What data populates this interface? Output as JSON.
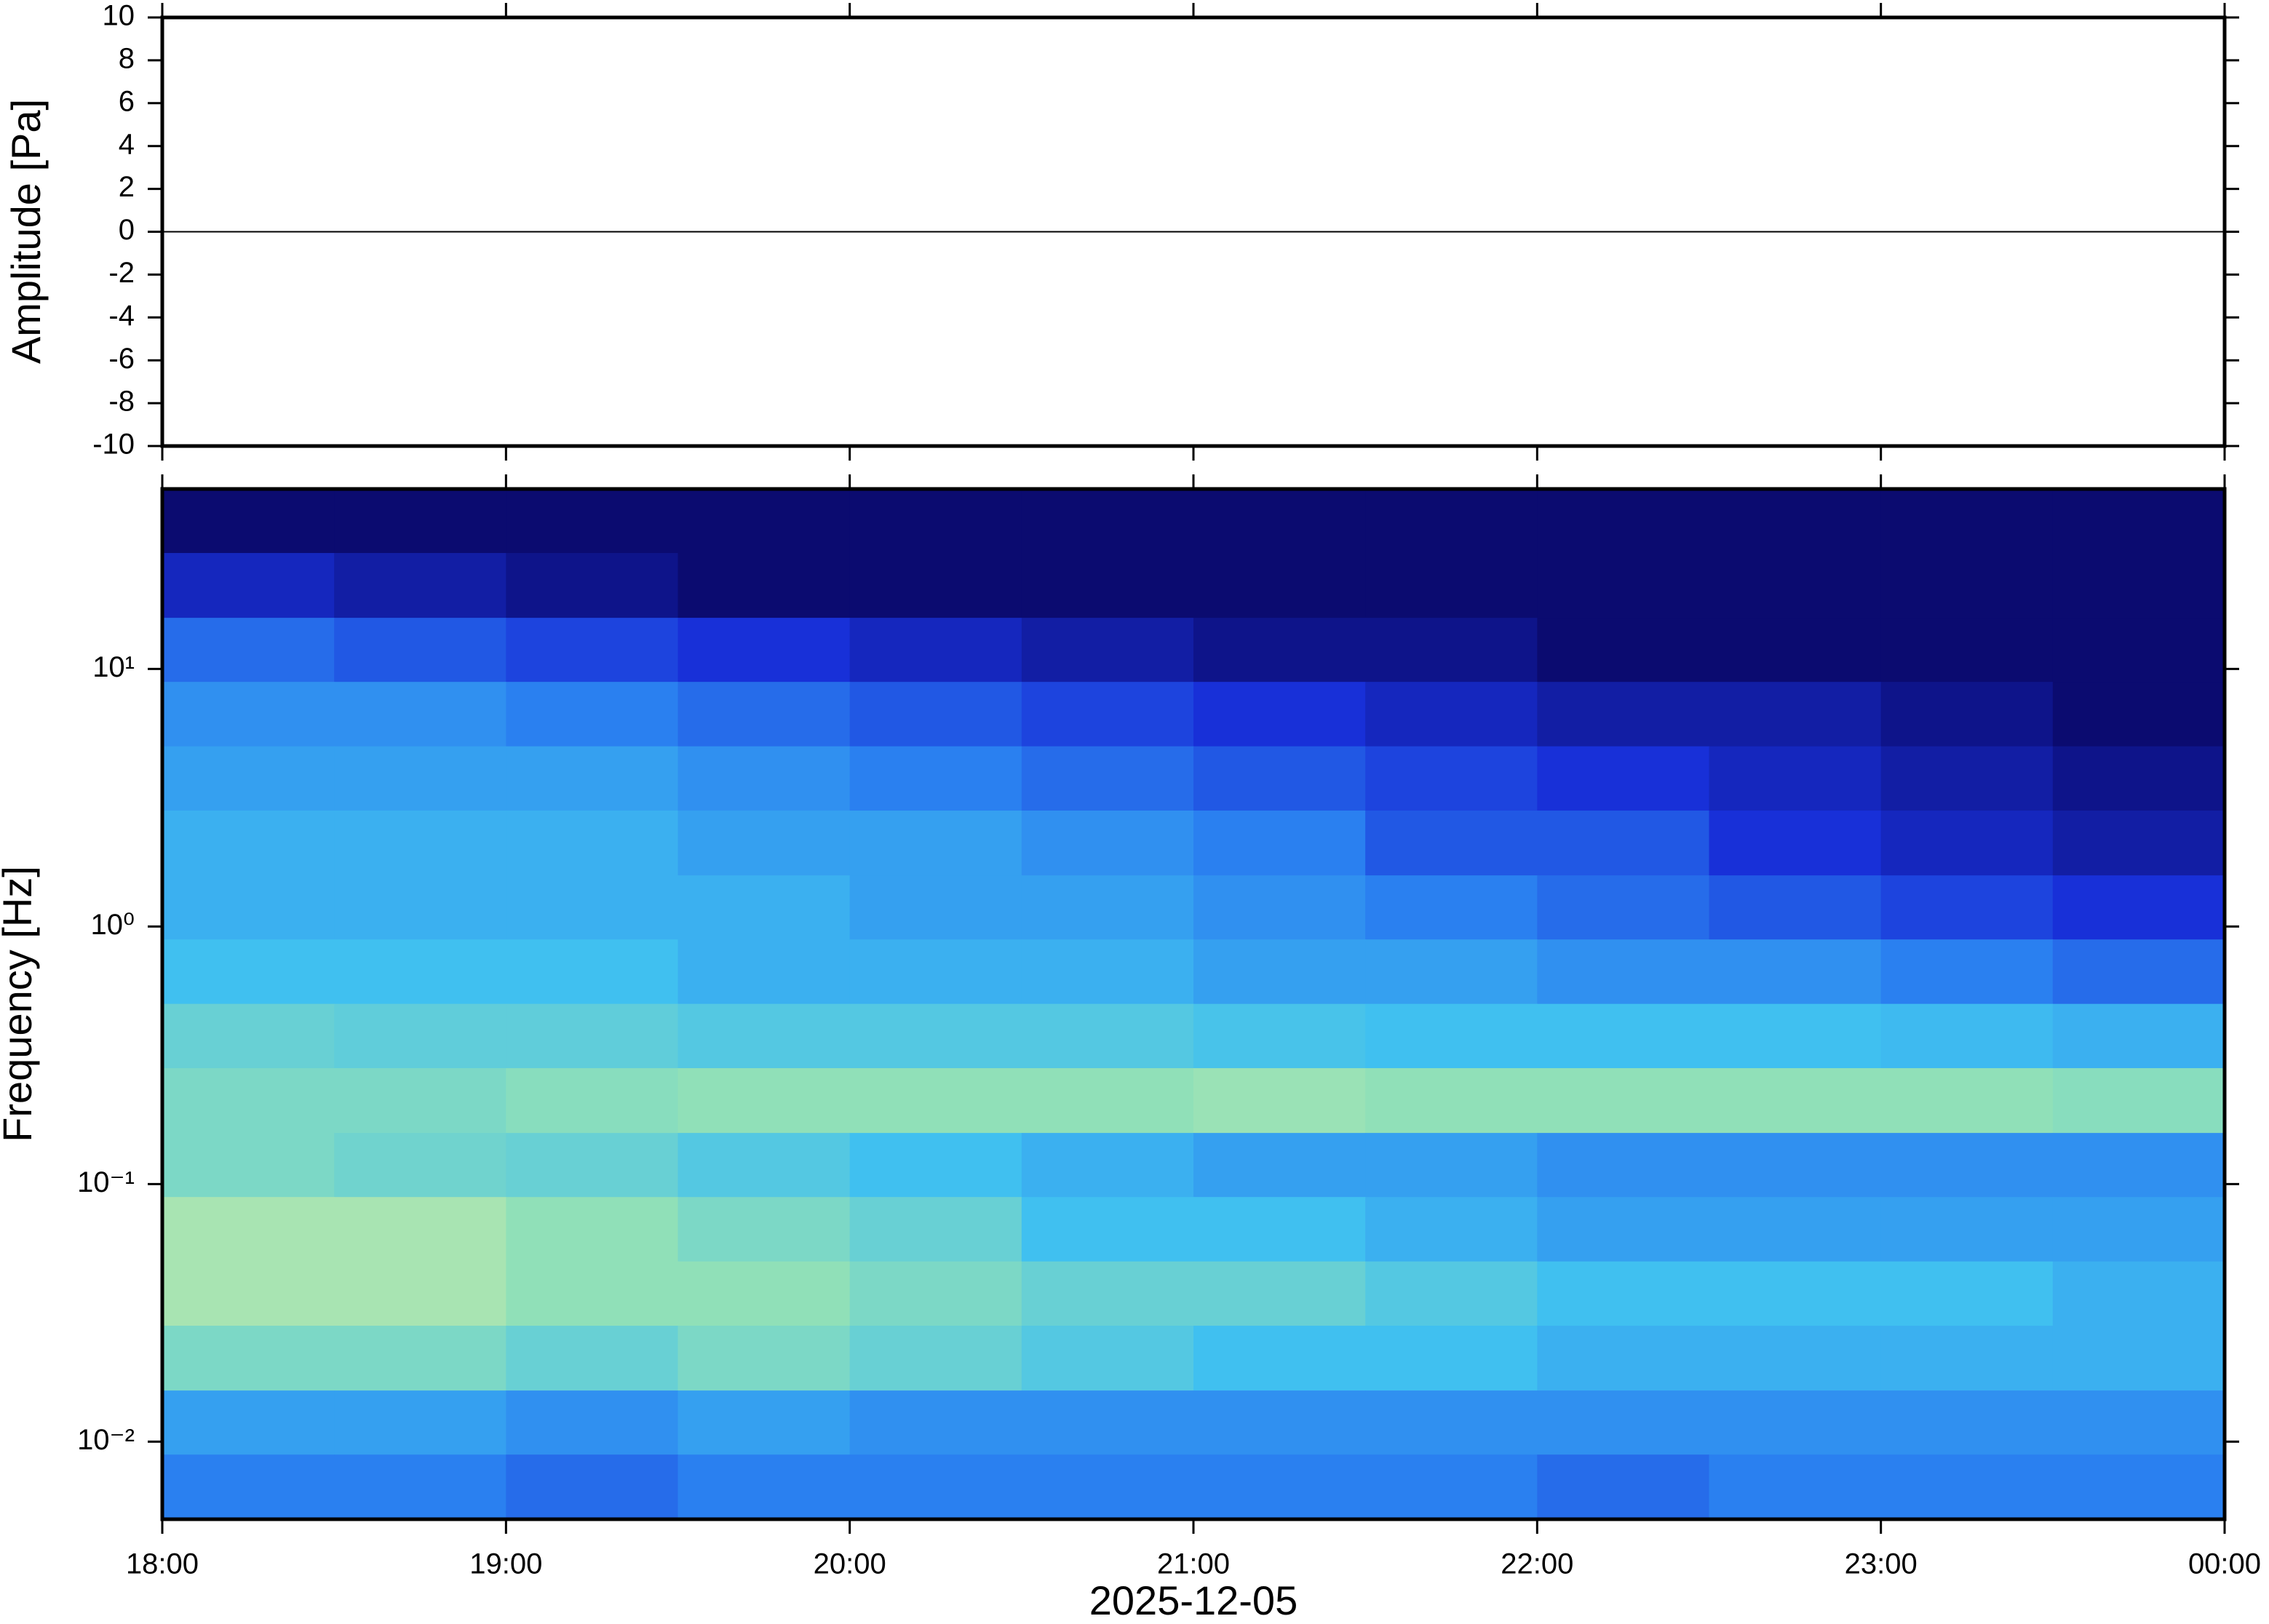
{
  "chart_data": [
    {
      "type": "line",
      "ylabel": "Amplitude [Pa]",
      "xlim": [
        18,
        24
      ],
      "ylim": [
        -10,
        10
      ],
      "yticks": [
        -10,
        -8,
        -6,
        -4,
        -2,
        0,
        2,
        4,
        6,
        8,
        10
      ],
      "series": [
        {
          "name": "Amplitude",
          "color": "#000000",
          "x": [
            18,
            18.5,
            19,
            19.5,
            20,
            20.5,
            21,
            21.5,
            22,
            22.5,
            23,
            23.5,
            24
          ],
          "values": [
            0,
            0,
            0,
            0,
            0,
            0,
            0,
            0,
            0,
            0,
            0,
            0,
            0
          ]
        }
      ]
    },
    {
      "type": "heatmap",
      "ylabel": "Frequency [Hz]",
      "xlabel": "2025-12-05",
      "xlim": [
        18,
        24
      ],
      "xticks": [
        {
          "value": 18,
          "label": "18:00"
        },
        {
          "value": 19,
          "label": "19:00"
        },
        {
          "value": 20,
          "label": "20:00"
        },
        {
          "value": 21,
          "label": "21:00"
        },
        {
          "value": 22,
          "label": "22:00"
        },
        {
          "value": 23,
          "label": "23:00"
        },
        {
          "value": 24,
          "label": "00:00"
        }
      ],
      "ylim": [
        0.005,
        50
      ],
      "ylog": true,
      "yticks": [
        {
          "value": 10,
          "label": "10¹"
        },
        {
          "value": 1,
          "label": "10⁰"
        },
        {
          "value": 0.1,
          "label": "10⁻¹"
        },
        {
          "value": 0.01,
          "label": "10⁻²"
        }
      ],
      "x_edges": [
        18,
        18.5,
        19,
        19.5,
        20,
        20.5,
        21,
        21.5,
        22,
        22.5,
        23,
        23.5,
        24
      ],
      "y_edges": [
        50,
        28.2,
        15.8,
        8.91,
        5.01,
        2.82,
        1.58,
        0.891,
        0.501,
        0.282,
        0.158,
        0.0891,
        0.0501,
        0.0282,
        0.0158,
        0.00891,
        0.005
      ],
      "colormap": [
        "#0b0b70",
        "#1830d8",
        "#2a80f0",
        "#40c0f0",
        "#90e0b8",
        "#f0f0a0"
      ],
      "z": [
        [
          0,
          0,
          0,
          0,
          0,
          0,
          0,
          0,
          0,
          0,
          0,
          0
        ],
        [
          0.15,
          0.1,
          0.05,
          0,
          0,
          0,
          0,
          0,
          0,
          0,
          0,
          0
        ],
        [
          0.35,
          0.3,
          0.25,
          0.2,
          0.15,
          0.1,
          0.05,
          0.05,
          0,
          0,
          0,
          0
        ],
        [
          0.45,
          0.45,
          0.4,
          0.35,
          0.3,
          0.25,
          0.2,
          0.15,
          0.1,
          0.1,
          0.05,
          0
        ],
        [
          0.5,
          0.5,
          0.5,
          0.45,
          0.4,
          0.35,
          0.3,
          0.25,
          0.2,
          0.15,
          0.1,
          0.05
        ],
        [
          0.55,
          0.55,
          0.55,
          0.5,
          0.5,
          0.45,
          0.4,
          0.3,
          0.3,
          0.2,
          0.15,
          0.1
        ],
        [
          0.55,
          0.55,
          0.55,
          0.55,
          0.5,
          0.5,
          0.45,
          0.4,
          0.35,
          0.3,
          0.25,
          0.2
        ],
        [
          0.6,
          0.6,
          0.6,
          0.55,
          0.55,
          0.55,
          0.5,
          0.5,
          0.45,
          0.45,
          0.4,
          0.35
        ],
        [
          0.7,
          0.68,
          0.68,
          0.65,
          0.65,
          0.65,
          0.62,
          0.6,
          0.6,
          0.6,
          0.58,
          0.55
        ],
        [
          0.75,
          0.75,
          0.78,
          0.8,
          0.8,
          0.8,
          0.82,
          0.8,
          0.8,
          0.8,
          0.8,
          0.78
        ],
        [
          0.75,
          0.72,
          0.7,
          0.65,
          0.6,
          0.55,
          0.5,
          0.5,
          0.45,
          0.45,
          0.45,
          0.45
        ],
        [
          0.85,
          0.85,
          0.8,
          0.75,
          0.7,
          0.6,
          0.6,
          0.55,
          0.5,
          0.5,
          0.5,
          0.5
        ],
        [
          0.85,
          0.85,
          0.8,
          0.8,
          0.75,
          0.7,
          0.7,
          0.65,
          0.6,
          0.6,
          0.6,
          0.55
        ],
        [
          0.75,
          0.75,
          0.7,
          0.75,
          0.7,
          0.65,
          0.6,
          0.6,
          0.55,
          0.55,
          0.55,
          0.55
        ],
        [
          0.5,
          0.5,
          0.45,
          0.5,
          0.45,
          0.45,
          0.45,
          0.45,
          0.45,
          0.45,
          0.45,
          0.45
        ],
        [
          0.4,
          0.4,
          0.35,
          0.4,
          0.4,
          0.4,
          0.4,
          0.4,
          0.35,
          0.4,
          0.4,
          0.4
        ]
      ]
    }
  ]
}
